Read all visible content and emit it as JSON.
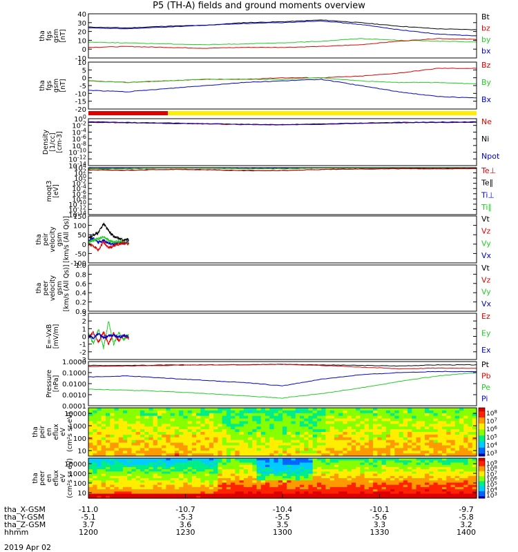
{
  "title": "P5 (TH-A) fields and ground moments overview",
  "date": "2019 Apr 02",
  "footer": {
    "row_labels": [
      "tha_X-GSM",
      "tha_Y-GSM",
      "tha_Z-GSM",
      "hhmm"
    ],
    "columns": [
      {
        "x": [
          "-11.0",
          "-5.1",
          "3.7",
          "1200"
        ]
      },
      {
        "x": [
          "-10.7",
          "-5.3",
          "3.6",
          "1230"
        ]
      },
      {
        "x": [
          "-10.4",
          "-5.5",
          "3.5",
          "1300"
        ]
      },
      {
        "x": [
          "-10.1",
          "-5.6",
          "3.3",
          "1330"
        ]
      },
      {
        "x": [
          "-9.7",
          "-5.8",
          "3.2",
          "1400"
        ]
      }
    ]
  },
  "chart_data": [
    {
      "type": "line",
      "ylabel": "tha\nfgs\ngsm\n[nT]",
      "ylim": [
        -10,
        40
      ],
      "yticks": [
        "-10",
        "0",
        "10",
        "20",
        "30",
        "40"
      ],
      "legend": [
        {
          "name": "Bt",
          "color": "#000000"
        },
        {
          "name": "bz",
          "color": "#e00000"
        },
        {
          "name": "by",
          "color": "#22cc22"
        },
        {
          "name": "bx",
          "color": "#0000cc"
        }
      ],
      "series": [
        {
          "name": "Bt",
          "color": "#000000",
          "values": [
            25,
            24,
            26,
            27,
            30,
            31,
            33,
            30,
            26,
            23,
            22
          ]
        },
        {
          "name": "bx",
          "color": "#0000cc",
          "values": [
            24,
            23,
            25,
            27,
            29,
            30,
            32,
            28,
            22,
            17,
            15
          ]
        },
        {
          "name": "by",
          "color": "#22cc22",
          "values": [
            8,
            7,
            6,
            5,
            6,
            7,
            9,
            12,
            10,
            9,
            8
          ]
        },
        {
          "name": "bz",
          "color": "#e00000",
          "values": [
            2,
            3,
            2,
            1,
            2,
            2,
            3,
            5,
            9,
            12,
            11
          ]
        }
      ]
    },
    {
      "type": "line",
      "ylabel": "tha\nfgs\ngsm\n[nT]",
      "ylim": [
        -20,
        10
      ],
      "yticks": [
        "-20",
        "-15",
        "-10",
        "-5",
        "0",
        "5",
        "10"
      ],
      "legend": [
        {
          "name": "Bz",
          "color": "#e00000"
        },
        {
          "name": "By",
          "color": "#22cc22"
        },
        {
          "name": "Bx",
          "color": "#0000cc"
        }
      ],
      "series": [
        {
          "name": "Bz",
          "color": "#e00000",
          "values": [
            -2,
            -3,
            -2,
            -1,
            -1,
            0,
            0,
            1,
            3,
            6,
            6
          ]
        },
        {
          "name": "By",
          "color": "#22cc22",
          "values": [
            -2,
            -3,
            -2,
            -1,
            -1,
            -1,
            0,
            -2,
            -3,
            -3,
            -4
          ]
        },
        {
          "name": "Bx",
          "color": "#0000cc",
          "values": [
            -8,
            -9,
            -7,
            -5,
            -3,
            -2,
            -1,
            -5,
            -9,
            -12,
            -13
          ]
        }
      ]
    },
    {
      "type": "line",
      "log": true,
      "ylabel": "Density\n[1/cc]\n[cm-3]",
      "ylim": [
        -14,
        1
      ],
      "yticks": [
        "10^0",
        "10^-2",
        "10^-4",
        "10^-6",
        "10^-8",
        "10^-10",
        "10^-12",
        "10^-14"
      ],
      "legend": [
        {
          "name": "Ne",
          "color": "#e00000"
        },
        {
          "name": "Ni",
          "color": "#000000"
        },
        {
          "name": "Npot",
          "color": "#0000cc"
        }
      ],
      "series": [
        {
          "name": "Ni",
          "color": "#000000",
          "values": [
            0,
            -0.2,
            -0.4,
            -0.6,
            -0.8,
            -0.9,
            -0.7,
            -0.4,
            -0.2,
            -0.1,
            0
          ]
        },
        {
          "name": "Ne",
          "color": "#e00000",
          "values": [
            -0.1,
            -0.3,
            -0.5,
            -0.7,
            -0.9,
            -1.0,
            -0.8,
            -0.5,
            -0.3,
            -0.2,
            -0.1
          ]
        },
        {
          "name": "Npot",
          "color": "#0000cc",
          "values": [
            -0.2,
            -0.3,
            -0.5,
            -0.6,
            -0.8,
            -0.9,
            -0.8,
            -0.5,
            -0.3,
            -0.2,
            -0.2
          ]
        }
      ]
    },
    {
      "type": "line",
      "log": true,
      "ylabel": "moqt3\n[eV]",
      "ylim": [
        -14,
        4
      ],
      "yticks": [
        "10^4",
        "10^2",
        "10^0",
        "10^-2",
        "10^-4",
        "10^-6",
        "10^-8",
        "10^-10",
        "10^-12",
        "10^-14"
      ],
      "legend": [
        {
          "name": "Te⊥",
          "color": "#e00000"
        },
        {
          "name": "Te∥",
          "color": "#000000"
        },
        {
          "name": "Ti⊥",
          "color": "#0000cc"
        },
        {
          "name": "Ti∥",
          "color": "#22cc22"
        }
      ],
      "series": [
        {
          "name": "Ti⊥",
          "color": "#0000cc",
          "values": [
            3.8,
            3.8,
            3.9,
            3.9,
            3.7,
            3.8,
            3.9,
            3.9,
            3.9,
            3.9,
            3.9
          ]
        },
        {
          "name": "Ti∥",
          "color": "#22cc22",
          "values": [
            3.6,
            3.6,
            3.8,
            3.8,
            3.6,
            3.6,
            3.8,
            3.8,
            3.8,
            3.8,
            3.8
          ]
        },
        {
          "name": "Te∥",
          "color": "#000000",
          "values": [
            3.2,
            3.1,
            3.3,
            3.3,
            2.9,
            2.9,
            3.3,
            3.5,
            3.6,
            3.6,
            3.6
          ]
        },
        {
          "name": "Te⊥",
          "color": "#e00000",
          "values": [
            3.1,
            3.0,
            3.3,
            3.2,
            2.8,
            2.9,
            3.3,
            3.5,
            3.6,
            3.6,
            3.6
          ]
        }
      ]
    },
    {
      "type": "line",
      "ylabel": "tha\npeir\nvelocity\ngsm\n[km/s (All Qs)]",
      "ylim": [
        -100,
        150
      ],
      "yticks": [
        "-100",
        "-50",
        "0",
        "50",
        "100",
        "150"
      ],
      "legend": [
        {
          "name": "Vt",
          "color": "#000000"
        },
        {
          "name": "Vz",
          "color": "#e00000"
        },
        {
          "name": "Vy",
          "color": "#22cc22"
        },
        {
          "name": "Vx",
          "color": "#0000cc"
        }
      ],
      "x_extent": [
        0,
        0.104
      ],
      "series": [
        {
          "name": "Vt",
          "color": "#000000",
          "values": [
            30,
            50,
            60,
            110,
            70,
            40,
            30,
            20,
            25
          ]
        },
        {
          "name": "Vx",
          "color": "#0000cc",
          "values": [
            20,
            30,
            10,
            20,
            5,
            0,
            10,
            5,
            10
          ]
        },
        {
          "name": "Vy",
          "color": "#22cc22",
          "values": [
            10,
            20,
            30,
            40,
            20,
            10,
            15,
            10,
            5
          ]
        },
        {
          "name": "Vz",
          "color": "#e00000",
          "values": [
            0,
            -10,
            -30,
            10,
            -20,
            -10,
            0,
            5,
            0
          ]
        }
      ]
    },
    {
      "type": "line",
      "ylabel": "tha\npeer\nvelocity\ngsm\n[km/s (All Qs)]",
      "ylim": [
        0,
        1
      ],
      "yticks": [
        "0.0",
        "0.2",
        "0.4",
        "0.6",
        "0.8",
        "1.0"
      ],
      "legend": [
        {
          "name": "Vt",
          "color": "#000000"
        },
        {
          "name": "Vz",
          "color": "#e00000"
        },
        {
          "name": "Vy",
          "color": "#22cc22"
        },
        {
          "name": "Vx",
          "color": "#0000cc"
        }
      ],
      "series": []
    },
    {
      "type": "line",
      "ylabel": "E=-VxB\n[mV/m]",
      "ylim": [
        -3,
        3
      ],
      "yticks": [
        "-3",
        "-2",
        "-1",
        "0",
        "1",
        "2",
        "3"
      ],
      "legend": [
        {
          "name": "Ez",
          "color": "#e00000"
        },
        {
          "name": "Ey",
          "color": "#22cc22"
        },
        {
          "name": "Ex",
          "color": "#0000cc"
        }
      ],
      "x_extent": [
        0,
        0.104
      ],
      "series": [
        {
          "name": "Ey",
          "color": "#22cc22",
          "values": [
            0.5,
            -1.0,
            1.0,
            -1.5,
            2.0,
            -1.0,
            0.5,
            -0.5,
            0.3
          ]
        },
        {
          "name": "Ez",
          "color": "#e00000",
          "values": [
            -0.2,
            0.5,
            -0.8,
            0.6,
            -1.0,
            0.4,
            -0.6,
            0.2,
            -0.3
          ]
        },
        {
          "name": "Ex",
          "color": "#0000cc",
          "values": [
            0.1,
            -0.2,
            0.3,
            -0.2,
            0.1,
            0.2,
            -0.1,
            0.1,
            0.0
          ]
        }
      ]
    },
    {
      "type": "line",
      "log": true,
      "ylabel": "Pressure\n[nPa]",
      "ylim": [
        -4,
        0
      ],
      "yticks": [
        "1.0000",
        "0.1000",
        "0.0100",
        "0.0010",
        "0.0001"
      ],
      "legend": [
        {
          "name": "Pt",
          "color": "#000000"
        },
        {
          "name": "Pb",
          "color": "#e00000"
        },
        {
          "name": "Pe",
          "color": "#22cc22"
        },
        {
          "name": "Pi",
          "color": "#0000cc"
        }
      ],
      "series": [
        {
          "name": "Pt",
          "color": "#000000",
          "values": [
            -0.35,
            -0.35,
            -0.32,
            -0.3,
            -0.28,
            -0.25,
            -0.3,
            -0.35,
            -0.4,
            -0.3,
            -0.3
          ]
        },
        {
          "name": "Pb",
          "color": "#e00000",
          "values": [
            -0.45,
            -0.4,
            -0.35,
            -0.3,
            -0.28,
            -0.25,
            -0.35,
            -0.5,
            -0.65,
            -0.6,
            -0.6
          ]
        },
        {
          "name": "Pi",
          "color": "#0000cc",
          "values": [
            -1.4,
            -1.3,
            -1.5,
            -1.7,
            -1.9,
            -2.2,
            -1.6,
            -1.2,
            -1.0,
            -0.9,
            -0.9
          ]
        },
        {
          "name": "Pe",
          "color": "#22cc22",
          "values": [
            -2.5,
            -2.6,
            -2.7,
            -2.9,
            -3.1,
            -3.3,
            -2.9,
            -2.4,
            -1.8,
            -1.3,
            -1.0
          ]
        }
      ]
    },
    {
      "type": "heatmap",
      "ylabel": "tha\npeir\nen\neflux\neV\n(cm²s sr eV)",
      "ylim": [
        5,
        20000
      ],
      "yticks": [
        "10000",
        "1000",
        "100",
        "10"
      ],
      "colorbar": {
        "label": "[eV/(cm²-s-sr-eV)] (All Qs)",
        "ticks": [
          "10^8",
          "10^7",
          "10^6",
          "10^5",
          "10^4",
          "10^3"
        ]
      }
    },
    {
      "type": "heatmap",
      "ylabel": "tha\npeer\nen\neflux\neV\n(cm²s sr eV)",
      "ylim": [
        5,
        20000
      ],
      "yticks": [
        "10000",
        "1000",
        "100",
        "10"
      ],
      "colorbar": {
        "label": "[eV/(cm²-s-sr-eV)]",
        "ticks": [
          "10^9",
          "10^8",
          "10^7",
          "10^6",
          "10^5",
          "10^4",
          "10^3"
        ]
      }
    }
  ]
}
